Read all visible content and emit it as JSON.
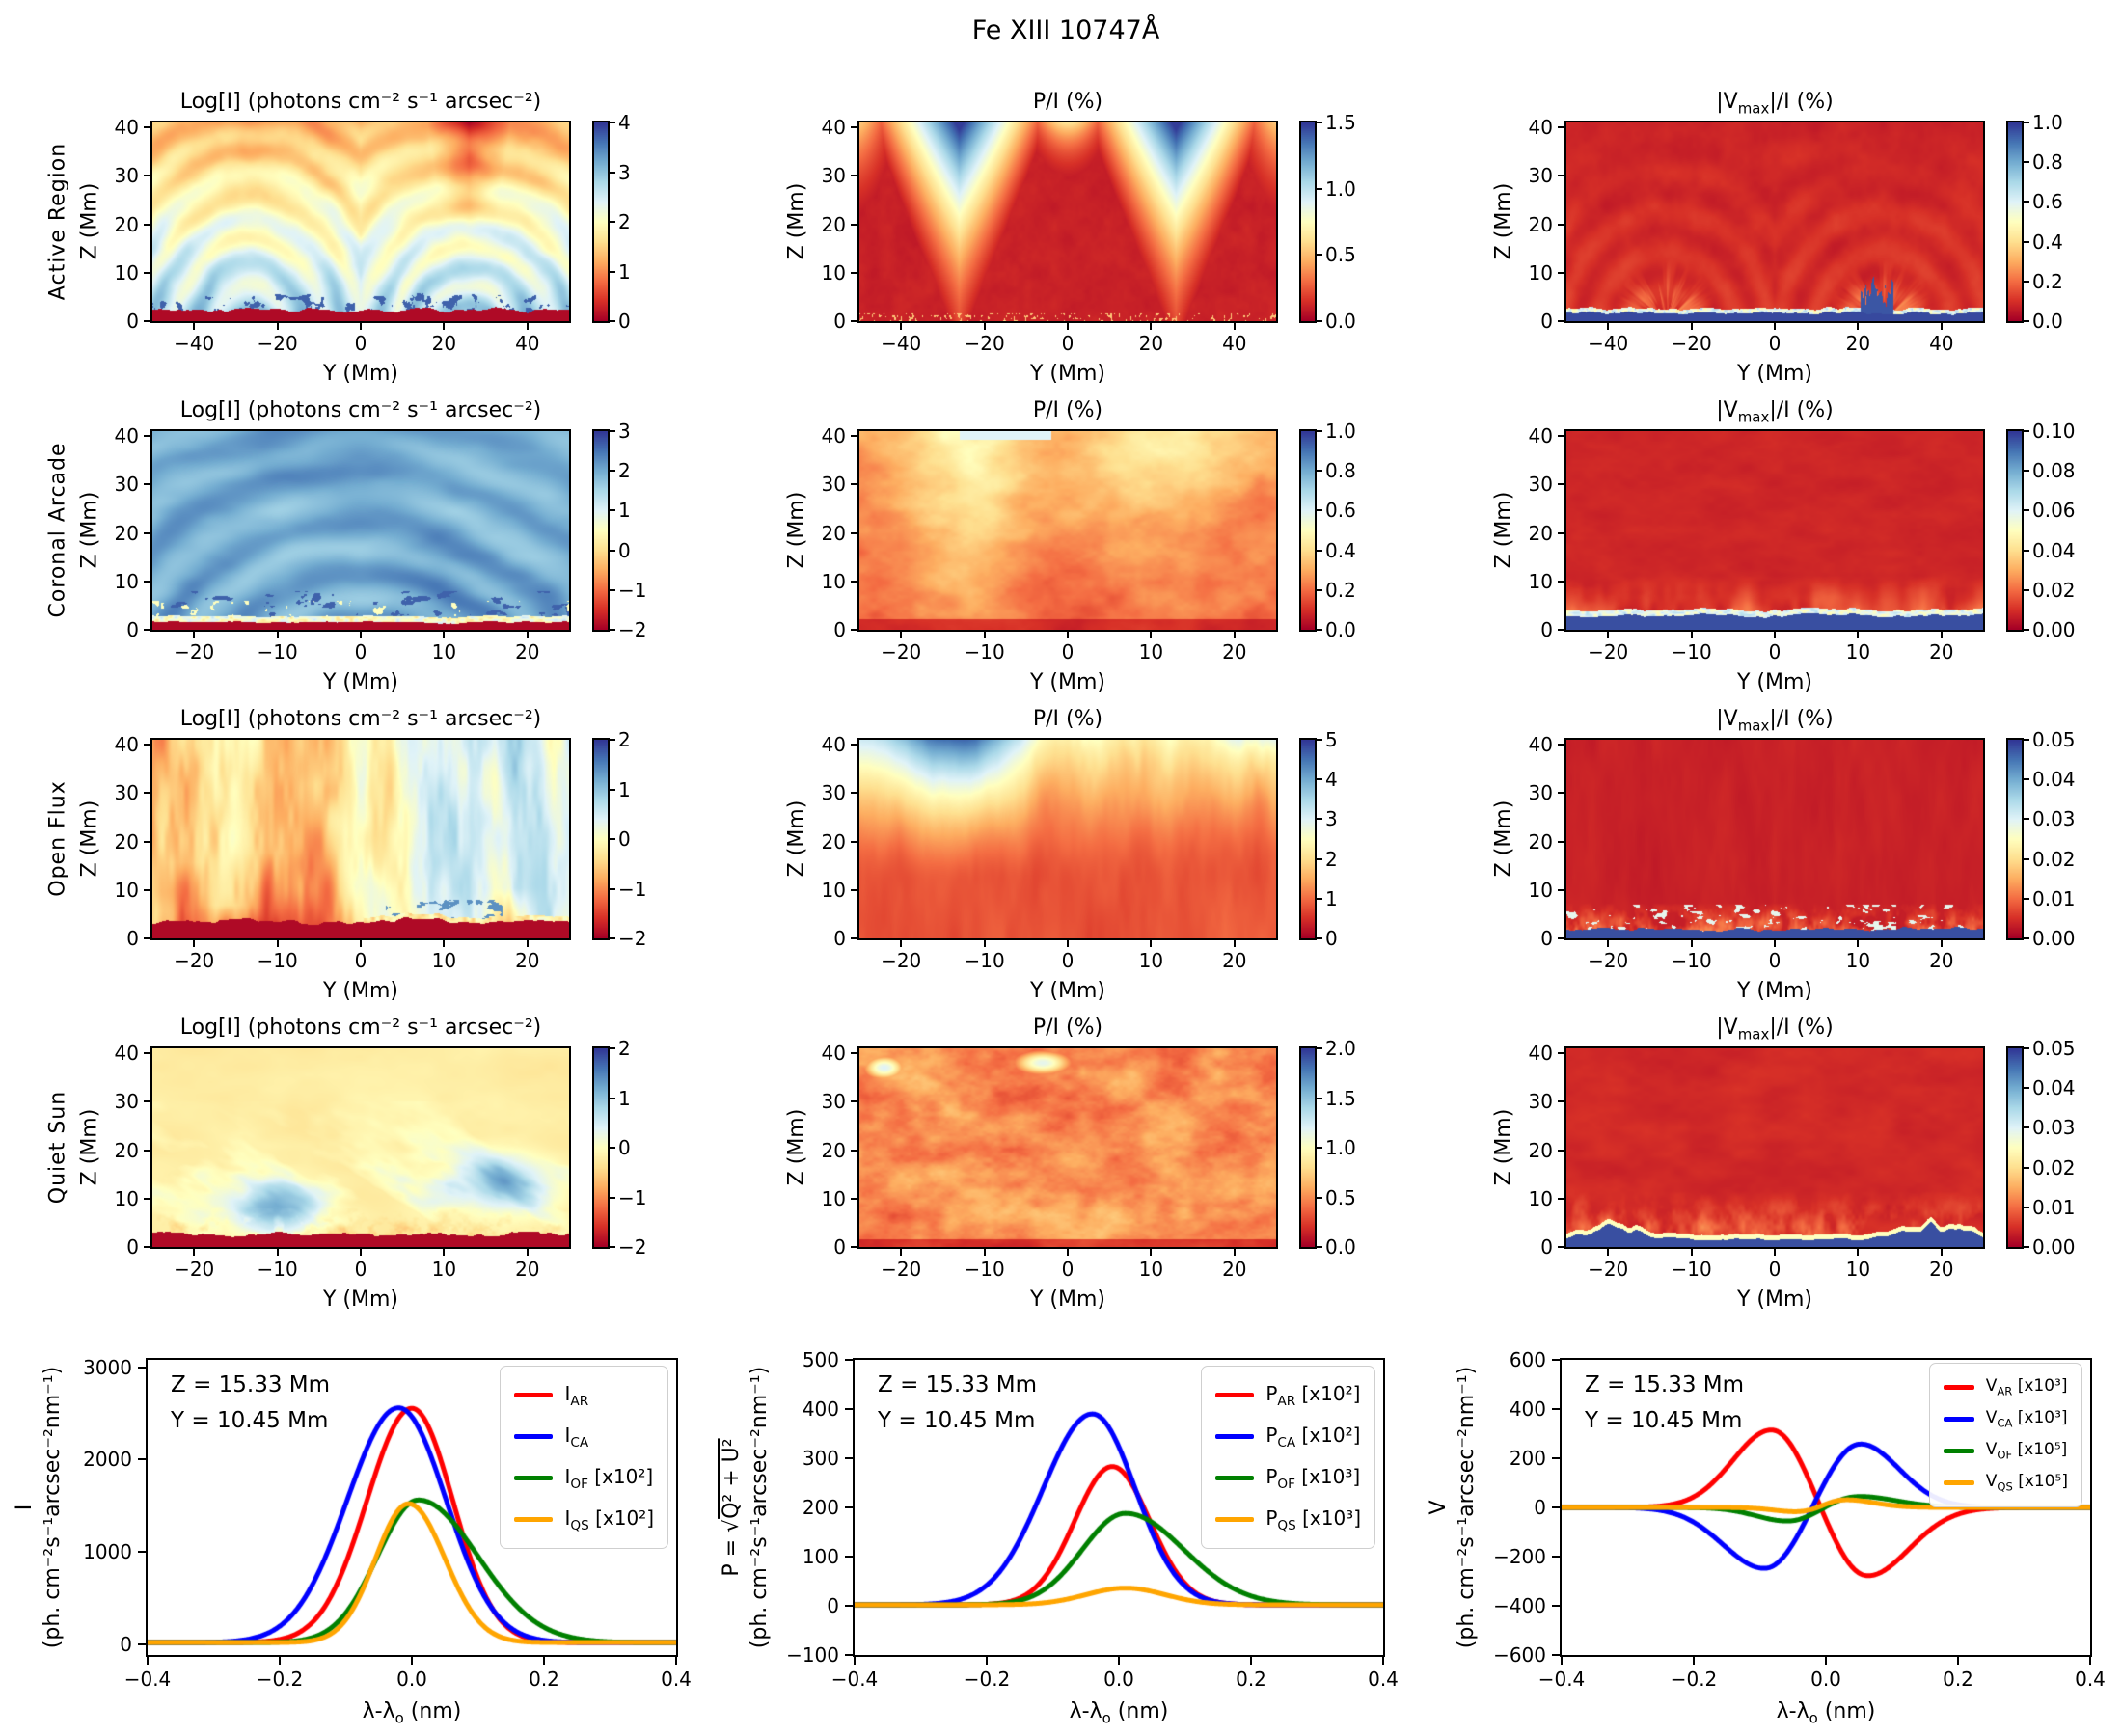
{
  "figure": {
    "title": "Fe XIII 10747Å",
    "background": "#ffffff",
    "text_color": "#000000"
  },
  "colormap": {
    "name": "RdYlBu (red = low, blue = high)",
    "stops": [
      "#a50026",
      "#d73027",
      "#f46d43",
      "#fdae61",
      "#fee090",
      "#ffffbf",
      "#e0f3f8",
      "#abd9e9",
      "#74add1",
      "#4575b4",
      "#313695"
    ]
  },
  "line_colors": {
    "AR": "#ff0000",
    "CA": "#0000ff",
    "OF": "#008000",
    "QS": "#ffa500"
  },
  "chart_data": {
    "heatmap_grid": {
      "type": "heatmap",
      "xlabel": "Y (Mm)",
      "zlabel": "Z (Mm)",
      "z_range": [
        0,
        41
      ],
      "z_ticks": [
        "0",
        "10",
        "20",
        "30",
        "40"
      ],
      "column_titles": [
        {
          "text": "Log[I] (photons cm⁻² s⁻¹ arcsec⁻²)"
        },
        {
          "text": "P/I  (%)"
        },
        {
          "pre": "|V",
          "sub": "max",
          "post": "|/I  (%)"
        }
      ],
      "rows": [
        {
          "label": "Active Region",
          "y_range": [
            -50,
            50
          ],
          "x_ticks": [
            "−40",
            "−20",
            "0",
            "20",
            "40"
          ],
          "panels": [
            {
              "pattern": "ar_logi",
              "visual": "nested warm loop arcades, blue low-lying loops, dark red chromosphere strip, dark blue patches near surface",
              "cbar": {
                "range": [
                  0,
                  4
                ],
                "ticks": [
                  "0",
                  "1",
                  "2",
                  "3",
                  "4"
                ]
              }
            },
            {
              "pattern": "ar_pi",
              "visual": "two bright V-shaped polarization funnels at Y≈±26 reaching blue at top, dark red background",
              "cbar": {
                "range": [
                  0,
                  1.5
                ],
                "ticks": [
                  "0.0",
                  "0.5",
                  "1.0",
                  "1.5"
                ]
              }
            },
            {
              "pattern": "ar_v",
              "visual": "dark red with bright ray fans from footpoints, dark blue surface layer and spike cluster at Y≈24",
              "cbar": {
                "range": [
                  0,
                  1
                ],
                "ticks": [
                  "0.0",
                  "0.2",
                  "0.4",
                  "0.6",
                  "0.8",
                  "1.0"
                ]
              }
            }
          ]
        },
        {
          "label": "Coronal Arcade",
          "y_range": [
            -25,
            25
          ],
          "x_ticks": [
            "−20",
            "−10",
            "0",
            "10",
            "20"
          ],
          "panels": [
            {
              "pattern": "ca_logi",
              "visual": "uniform medium-blue corona with faint darker arcade loops, thin pale fringe and dark red strip at bottom",
              "cbar": {
                "range": [
                  -2,
                  3
                ],
                "ticks": [
                  "−2",
                  "−1",
                  "0",
                  "1",
                  "2",
                  "3"
                ]
              }
            },
            {
              "pattern": "ca_pi",
              "visual": "mottled orange field, lighter yellow columns near Y≈−12 and Y≈10, brighter toward top",
              "cbar": {
                "range": [
                  0,
                  1
                ],
                "ticks": [
                  "0.0",
                  "0.2",
                  "0.4",
                  "0.6",
                  "0.8",
                  "1.0"
                ]
              }
            },
            {
              "pattern": "ca_v",
              "visual": "dark red upper region, orange fan streaks low down, dark blue bottom layer with pale fringe",
              "cbar": {
                "range": [
                  0,
                  0.1
                ],
                "ticks": [
                  "0.00",
                  "0.02",
                  "0.04",
                  "0.06",
                  "0.08",
                  "0.10"
                ]
              }
            }
          ]
        },
        {
          "label": "Open Flux",
          "y_range": [
            -25,
            25
          ],
          "x_ticks": [
            "−20",
            "−10",
            "0",
            "10",
            "20"
          ],
          "panels": [
            {
              "pattern": "of_logi",
              "visual": "vertical plumes: orange-red columns on left, pale yellow centre, light blue right half, blue clumps near surface",
              "cbar": {
                "range": [
                  -2,
                  2
                ],
                "ticks": [
                  "−2",
                  "−1",
                  "0",
                  "1",
                  "2"
                ]
              }
            },
            {
              "pattern": "of_pi",
              "visual": "red-orange streaked lower half rising to yellow band then light blue top, strongest blue top-left",
              "cbar": {
                "range": [
                  0,
                  5
                ],
                "ticks": [
                  "0",
                  "1",
                  "2",
                  "3",
                  "4",
                  "5"
                ]
              }
            },
            {
              "pattern": "of_v",
              "visual": "dark red with faint vertical streaks, orange patches low down, dark blue bottom strip",
              "cbar": {
                "range": [
                  0,
                  0.05
                ],
                "ticks": [
                  "0.00",
                  "0.01",
                  "0.02",
                  "0.03",
                  "0.04",
                  "0.05"
                ]
              }
            }
          ]
        },
        {
          "label": "Quiet Sun",
          "y_range": [
            -25,
            25
          ],
          "x_ticks": [
            "−20",
            "−10",
            "0",
            "10",
            "20"
          ],
          "panels": [
            {
              "pattern": "qs_logi",
              "visual": "pale yellow background with light blue wisps, blue clumps near Y≈−10 and Y≈17, ragged dark red floor",
              "cbar": {
                "range": [
                  -2,
                  2
                ],
                "ticks": [
                  "−2",
                  "−1",
                  "0",
                  "1",
                  "2"
                ]
              }
            },
            {
              "pattern": "qs_pi",
              "visual": "fully mottled orange-red turbulence with small white patches near the top left",
              "cbar": {
                "range": [
                  0,
                  2
                ],
                "ticks": [
                  "0.0",
                  "0.5",
                  "1.0",
                  "1.5",
                  "2.0"
                ]
              }
            },
            {
              "pattern": "qs_v",
              "visual": "mottled dark red, orange streaks in lower half, dark blue bottom layer with bumps at Y≈±19",
              "cbar": {
                "range": [
                  0,
                  0.05
                ],
                "ticks": [
                  "0.00",
                  "0.01",
                  "0.02",
                  "0.03",
                  "0.04",
                  "0.05"
                ]
              }
            }
          ]
        }
      ]
    },
    "profiles": {
      "type": "line",
      "annotation": [
        "Z = 15.33 Mm",
        "Y = 10.45 Mm"
      ],
      "xlabel": {
        "pre": "λ-λ",
        "sub": "o",
        "post": " (nm)"
      },
      "x_range": [
        -0.4,
        0.4
      ],
      "x_ticks": [
        "−0.4",
        "−0.2",
        "0.0",
        "0.2",
        "0.4"
      ],
      "units_line": "(ph. cm⁻²s⁻¹arcsec⁻²nm⁻¹)",
      "panels": [
        {
          "id": "intensity",
          "ylabel_line1": {
            "plain": "I"
          },
          "y_range": [
            -120,
            3080
          ],
          "y_ticks": [
            "0",
            "1000",
            "2000",
            "3000"
          ],
          "legend_font": 20,
          "series": [
            {
              "label": {
                "main": "I",
                "sub": "AR",
                "tail": ""
              },
              "color": "#ff0000",
              "baseline": 15,
              "components": [
                {
                  "amp": 2540,
                  "mu": 0.0,
                  "sigL": 0.068,
                  "sigR": 0.062
                }
              ],
              "peak": 2555
            },
            {
              "label": {
                "main": "I",
                "sub": "CA",
                "tail": ""
              },
              "color": "#0000ff",
              "baseline": 15,
              "components": [
                {
                  "amp": 2545,
                  "mu": -0.02,
                  "sigL": 0.078,
                  "sigR": 0.072
                }
              ],
              "peak": 2560
            },
            {
              "label": {
                "main": "I",
                "sub": "OF",
                "tail": " [x10²]"
              },
              "color": "#008000",
              "baseline": 15,
              "components": [
                {
                  "amp": 1545,
                  "mu": 0.01,
                  "sigL": 0.062,
                  "sigR": 0.09
                }
              ],
              "peak": 1560
            },
            {
              "label": {
                "main": "I",
                "sub": "QS",
                "tail": " [x10²]"
              },
              "color": "#ffa500",
              "baseline": 15,
              "components": [
                {
                  "amp": 1505,
                  "mu": -0.005,
                  "sigL": 0.05,
                  "sigR": 0.055
                }
              ],
              "peak": 1520
            }
          ]
        },
        {
          "id": "polarization",
          "ylabel_line1": {
            "p_prefix": "P = √",
            "p_sqrt": "Q² + U²"
          },
          "y_range": [
            -100,
            500
          ],
          "y_ticks": [
            "−100",
            "0",
            "100",
            "200",
            "300",
            "400",
            "500"
          ],
          "legend_font": 20,
          "series": [
            {
              "label": {
                "main": "P",
                "sub": "AR",
                "tail": " [x10²]"
              },
              "color": "#ff0000",
              "baseline": 2,
              "components": [
                {
                  "amp": 281,
                  "mu": -0.01,
                  "sigL": 0.057,
                  "sigR": 0.057
                }
              ],
              "peak": 283
            },
            {
              "label": {
                "main": "P",
                "sub": "CA",
                "tail": " [x10²]"
              },
              "color": "#0000ff",
              "baseline": 2,
              "components": [
                {
                  "amp": 388,
                  "mu": -0.04,
                  "sigL": 0.075,
                  "sigR": 0.065
                }
              ],
              "peak": 390
            },
            {
              "label": {
                "main": "P",
                "sub": "OF",
                "tail": " [x10³]"
              },
              "color": "#008000",
              "baseline": 2,
              "components": [
                {
                  "amp": 186,
                  "mu": 0.01,
                  "sigL": 0.065,
                  "sigR": 0.088
                }
              ],
              "peak": 188
            },
            {
              "label": {
                "main": "P",
                "sub": "QS",
                "tail": " [x10³]"
              },
              "color": "#ffa500",
              "baseline": 2,
              "components": [
                {
                  "amp": 34,
                  "mu": 0.01,
                  "sigL": 0.06,
                  "sigR": 0.06
                }
              ],
              "peak": 36
            }
          ]
        },
        {
          "id": "stokes-v",
          "ylabel_line1": {
            "plain": "V"
          },
          "y_range": [
            -600,
            600
          ],
          "y_ticks": [
            "−600",
            "−400",
            "−200",
            "0",
            "200",
            "400",
            "600"
          ],
          "legend_font": 17,
          "series": [
            {
              "label": {
                "main": "V",
                "sub": "AR",
                "tail": " [x10³]"
              },
              "color": "#ff0000",
              "baseline": 0,
              "components": [
                {
                  "amp": 320,
                  "mu": -0.08,
                  "sigL": 0.06,
                  "sigR": 0.05
                },
                {
                  "amp": -283,
                  "mu": 0.06,
                  "sigL": 0.05,
                  "sigR": 0.065
                }
              ],
              "extrema": {
                "max": 320,
                "min": -280
              }
            },
            {
              "label": {
                "main": "V",
                "sub": "CA",
                "tail": " [x10³]"
              },
              "color": "#0000ff",
              "baseline": 0,
              "components": [
                {
                  "amp": -252,
                  "mu": -0.09,
                  "sigL": 0.065,
                  "sigR": 0.05
                },
                {
                  "amp": 262,
                  "mu": 0.05,
                  "sigL": 0.05,
                  "sigR": 0.06
                }
              ],
              "extrema": {
                "max": 260,
                "min": -250
              }
            },
            {
              "label": {
                "main": "V",
                "sub": "OF",
                "tail": " [x10⁵]"
              },
              "color": "#008000",
              "baseline": 0,
              "components": [
                {
                  "amp": -57,
                  "mu": -0.055,
                  "sigL": 0.05,
                  "sigR": 0.04
                },
                {
                  "amp": 46,
                  "mu": 0.045,
                  "sigL": 0.04,
                  "sigR": 0.06
                }
              ],
              "extrema": {
                "max": 45,
                "min": -55
              }
            },
            {
              "label": {
                "main": "V",
                "sub": "QS",
                "tail": " [x10⁵]"
              },
              "color": "#ffa500",
              "baseline": 0,
              "components": [
                {
                  "amp": -20,
                  "mu": -0.035,
                  "sigL": 0.04,
                  "sigR": 0.03
                },
                {
                  "amp": 33,
                  "mu": 0.025,
                  "sigL": 0.03,
                  "sigR": 0.045
                }
              ],
              "extrema": {
                "max": 32,
                "min": -20
              }
            }
          ]
        }
      ]
    }
  }
}
